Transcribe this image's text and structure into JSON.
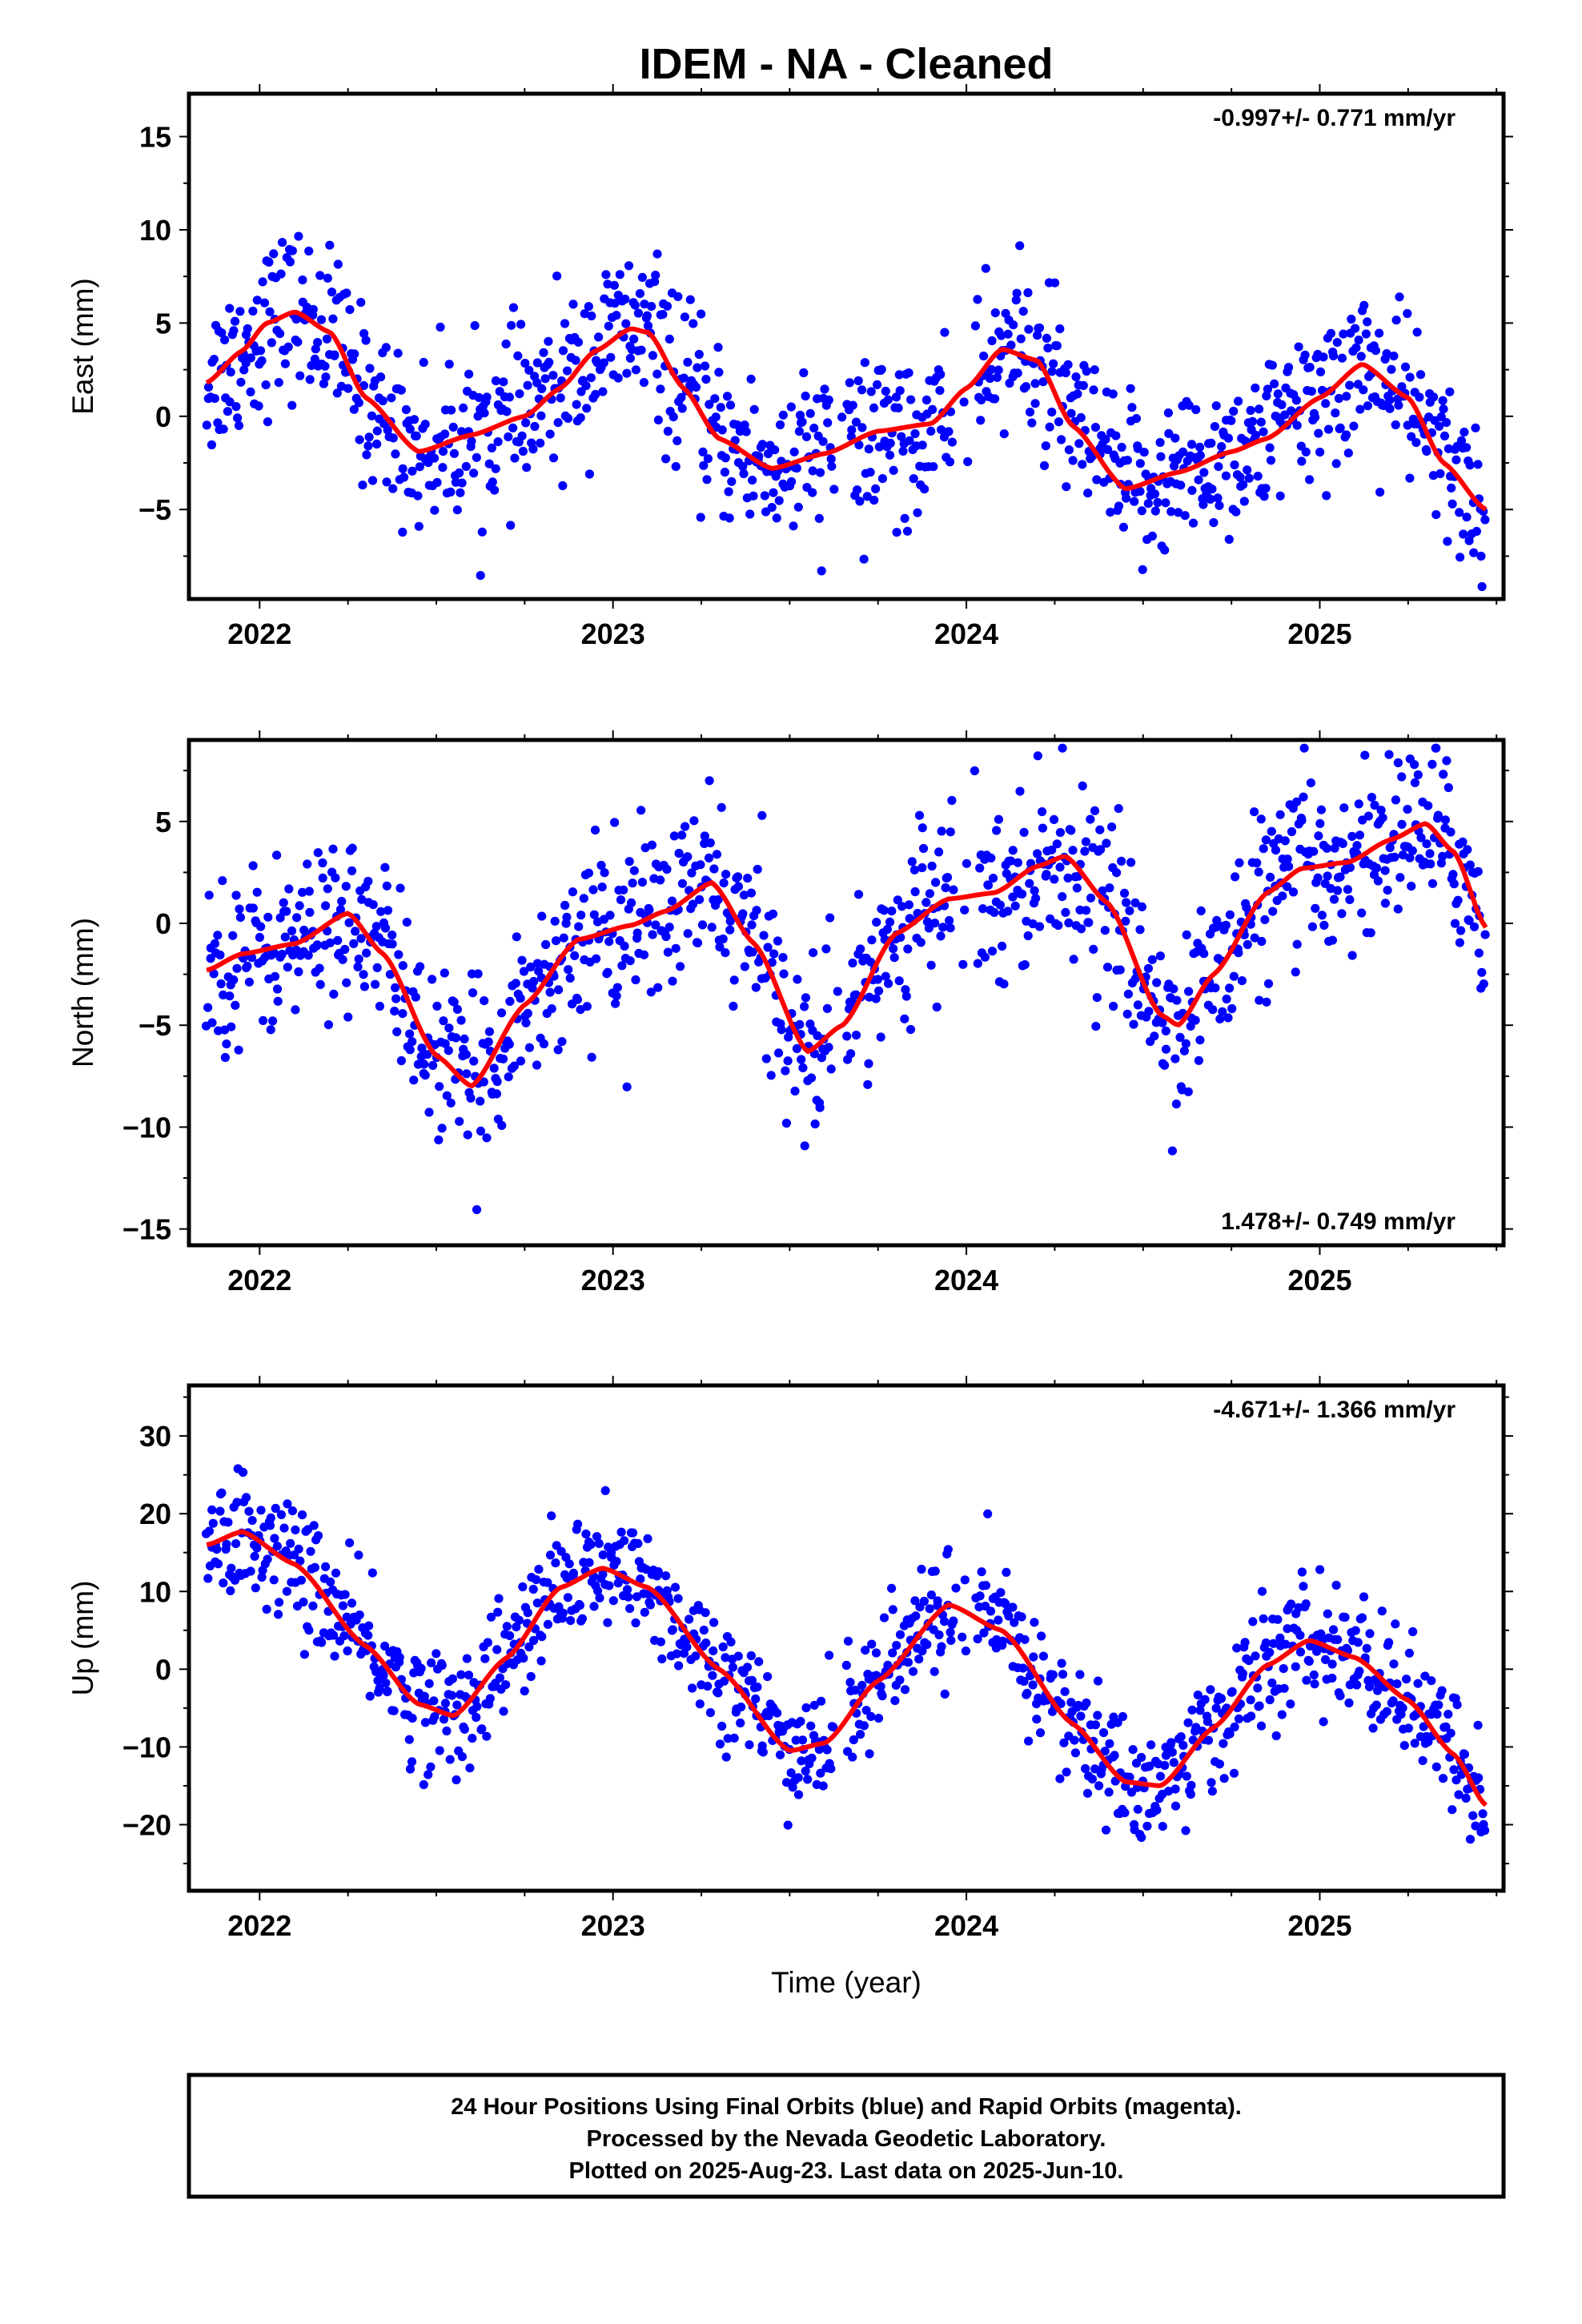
{
  "title": "IDEM  - NA - Cleaned",
  "xlabel": "Time (year)",
  "footer": [
    "24 Hour Positions Using Final Orbits (blue) and Rapid Orbits (magenta).",
    "Processed by the Nevada Geodetic Laboratory.",
    "Plotted on 2025-Aug-23. Last data on 2025-Jun-10."
  ],
  "colors": {
    "points": "#0000ff",
    "fit": "#ff0000",
    "frame": "#000000"
  },
  "chart_data": [
    {
      "type": "scatter",
      "ylabel": "East (mm)",
      "rate": "-0.997+/- 0.771 mm/yr",
      "rate_position": "top-right",
      "xlim": [
        2021.8,
        2025.52
      ],
      "ylim": [
        -9.8,
        17.3
      ],
      "x_ticks": [
        2022,
        2023,
        2024,
        2025
      ],
      "y_ticks": [
        -5,
        0,
        5,
        10,
        15
      ],
      "series": [
        {
          "kind": "scatter",
          "points_per_year": 300,
          "noise_mm": 2.2,
          "scatter_range": [
            -9.2,
            16.8
          ]
        },
        {
          "kind": "line",
          "x": [
            2021.85,
            2021.95,
            2022.02,
            2022.1,
            2022.2,
            2022.3,
            2022.45,
            2022.6,
            2022.75,
            2022.85,
            2022.95,
            2023.05,
            2023.1,
            2023.2,
            2023.3,
            2023.45,
            2023.6,
            2023.75,
            2023.9,
            2024.0,
            2024.1,
            2024.2,
            2024.3,
            2024.45,
            2024.6,
            2024.75,
            2024.85,
            2025.0,
            2025.12,
            2025.25,
            2025.35,
            2025.47
          ],
          "y": [
            1.8,
            3.5,
            5.0,
            5.6,
            4.5,
            1.0,
            -1.9,
            -1.0,
            0.0,
            1.5,
            3.5,
            4.7,
            4.5,
            1.5,
            -1.2,
            -2.8,
            -2.0,
            -0.8,
            -0.4,
            1.5,
            3.6,
            3.0,
            -0.5,
            -3.9,
            -3.0,
            -1.9,
            -1.2,
            1.0,
            2.8,
            1.0,
            -2.5,
            -5.0
          ]
        }
      ]
    },
    {
      "type": "scatter",
      "ylabel": "North (mm)",
      "rate": "1.478+/- 0.749 mm/yr",
      "rate_position": "bottom-right",
      "xlim": [
        2021.8,
        2025.52
      ],
      "ylim": [
        -15.8,
        9.0
      ],
      "x_ticks": [
        2022,
        2023,
        2024,
        2025
      ],
      "y_ticks": [
        -15,
        -10,
        -5,
        0,
        5
      ],
      "series": [
        {
          "kind": "scatter",
          "points_per_year": 300,
          "noise_mm": 2.1,
          "scatter_range": [
            -15.3,
            8.6
          ]
        },
        {
          "kind": "line",
          "x": [
            2021.85,
            2021.95,
            2022.1,
            2022.25,
            2022.35,
            2022.5,
            2022.6,
            2022.75,
            2022.9,
            2023.05,
            2023.15,
            2023.28,
            2023.4,
            2023.55,
            2023.65,
            2023.8,
            2023.95,
            2024.08,
            2024.2,
            2024.28,
            2024.4,
            2024.55,
            2024.6,
            2024.7,
            2024.85,
            2024.95,
            2025.08,
            2025.2,
            2025.3,
            2025.38,
            2025.47
          ],
          "y": [
            -2.3,
            -1.5,
            -1.0,
            0.5,
            -1.5,
            -6.5,
            -8.0,
            -4.0,
            -0.8,
            -0.1,
            0.6,
            2.0,
            -1.0,
            -6.3,
            -5.0,
            -0.5,
            1.2,
            1.5,
            2.8,
            3.3,
            1.0,
            -4.5,
            -5.0,
            -2.5,
            1.5,
            2.7,
            3.0,
            4.1,
            4.9,
            3.5,
            -0.2
          ]
        }
      ]
    },
    {
      "type": "scatter",
      "ylabel": "Up (mm)",
      "rate": "-4.671+/- 1.366 mm/yr",
      "rate_position": "top-right",
      "xlim": [
        2021.8,
        2025.52
      ],
      "ylim": [
        -28.5,
        36.5
      ],
      "x_ticks": [
        2022,
        2023,
        2024,
        2025
      ],
      "y_ticks": [
        -20,
        -10,
        0,
        10,
        20,
        30
      ],
      "series": [
        {
          "kind": "scatter",
          "points_per_year": 300,
          "noise_mm": 4.0,
          "scatter_range": [
            -27.5,
            35.5
          ]
        },
        {
          "kind": "line",
          "x": [
            2021.85,
            2021.95,
            2022.1,
            2022.3,
            2022.45,
            2022.55,
            2022.7,
            2022.85,
            2022.97,
            2023.1,
            2023.3,
            2023.5,
            2023.6,
            2023.75,
            2023.95,
            2024.1,
            2024.3,
            2024.45,
            2024.55,
            2024.7,
            2024.85,
            2024.97,
            2025.1,
            2025.25,
            2025.38,
            2025.47
          ],
          "y": [
            16.0,
            17.7,
            13.5,
            3.0,
            -4.5,
            -6.0,
            1.5,
            10.5,
            13.0,
            10.5,
            0.0,
            -10.5,
            -9.5,
            -1.5,
            8.3,
            5.0,
            -7.0,
            -14.5,
            -15.0,
            -7.5,
            0.5,
            3.7,
            1.5,
            -4.0,
            -11.0,
            -17.5
          ]
        }
      ]
    }
  ]
}
